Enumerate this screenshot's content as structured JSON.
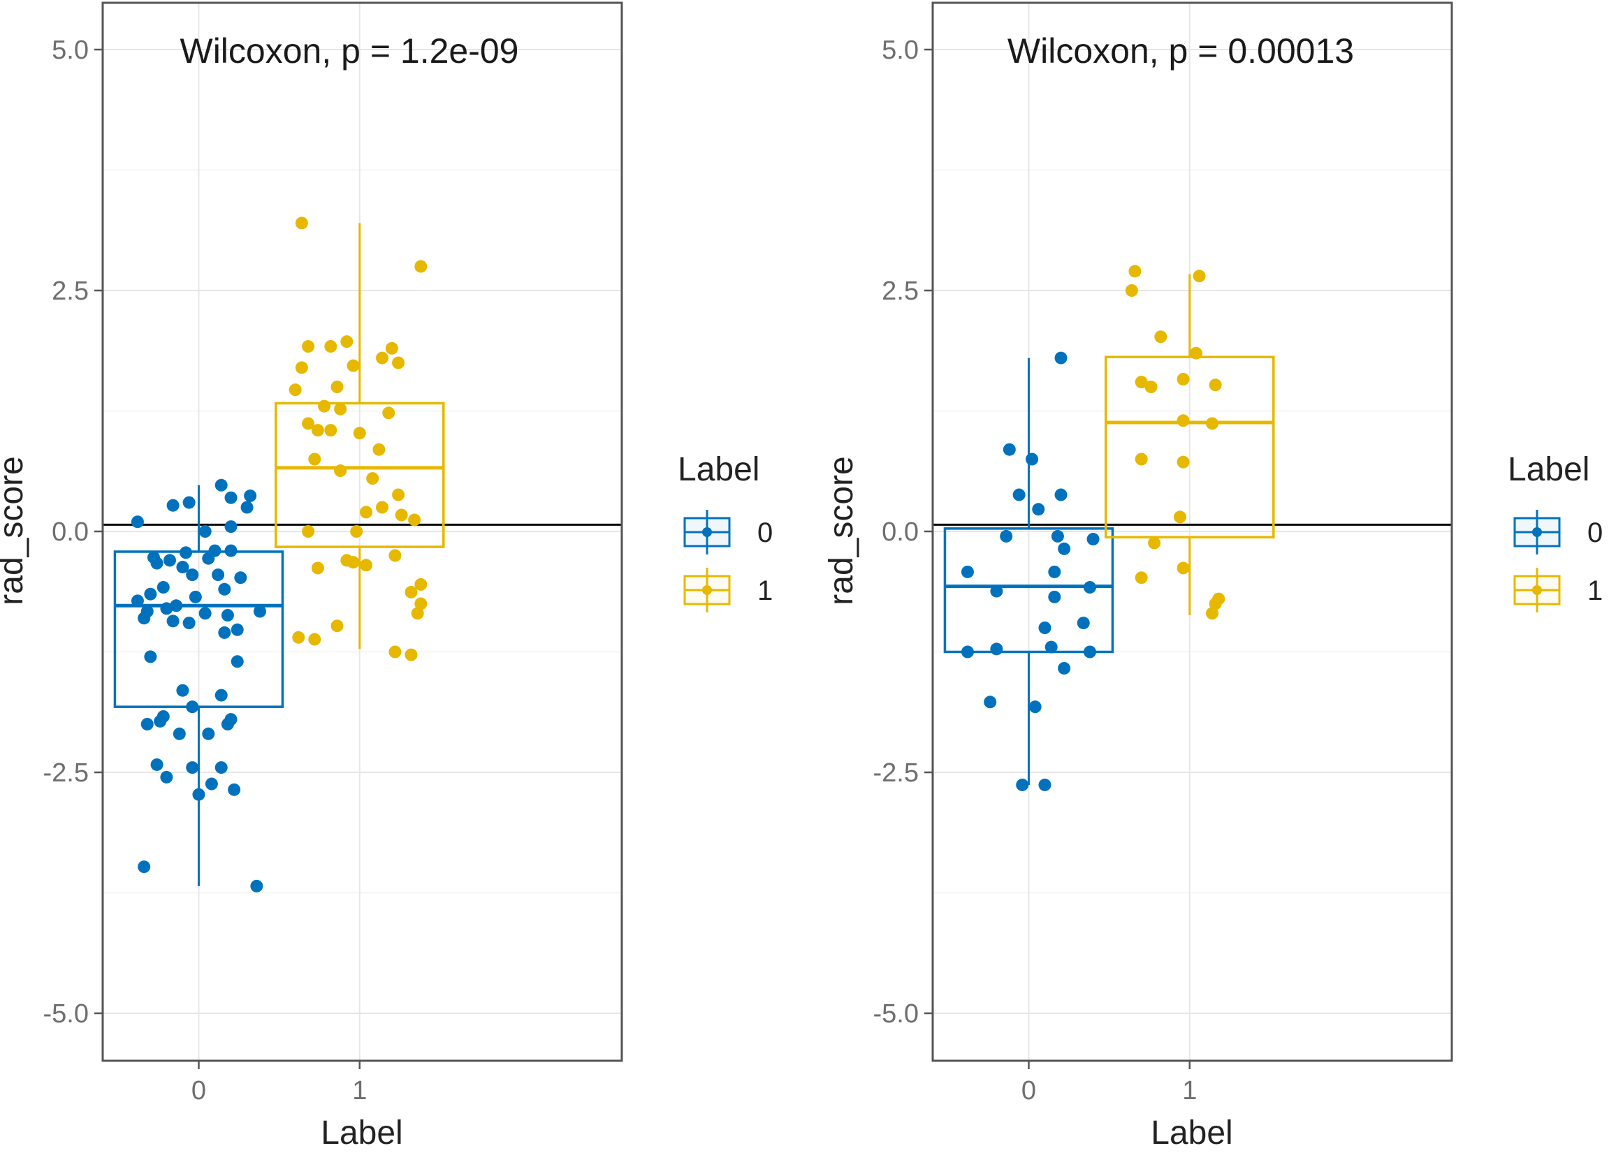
{
  "chart_data": [
    {
      "type": "boxplot",
      "annotation": "Wilcoxon, p = 1.2e-09",
      "xlabel": "Label",
      "ylabel": "rad_score",
      "categories": [
        "0",
        "1"
      ],
      "ylim": [
        -5.5,
        5.2
      ],
      "yticks": [
        5.0,
        2.5,
        0.0,
        -2.5,
        -5.0
      ],
      "ytick_labels": [
        "5.0",
        "2.5",
        "0.0",
        "-2.5",
        "-5.0"
      ],
      "hline": 0.07,
      "legend": {
        "title": "Label",
        "entries": [
          "0",
          "1"
        ],
        "position": "right"
      },
      "boxes": [
        {
          "category": "0",
          "color": "#0072BD",
          "q1": -1.82,
          "median": -0.77,
          "q3": -0.21,
          "whisker_low": -3.68,
          "whisker_high": 0.48
        },
        {
          "category": "1",
          "color": "#E7B800",
          "q1": -0.16,
          "median": 0.66,
          "q3": 1.33,
          "whisker_low": -1.22,
          "whisker_high": 3.2
        }
      ],
      "points": [
        {
          "category": "0",
          "jitter": [
            -0.19,
            0.07,
            0.1,
            -0.03,
            0.16,
            -0.08,
            0.15,
            0.02,
            0.1,
            -0.14,
            -0.04,
            0.05,
            0.1,
            -0.09,
            0.03,
            -0.13,
            -0.05,
            -0.02,
            0.06,
            0.13,
            -0.11,
            -0.15,
            -0.01,
            0.08,
            -0.19,
            -0.1,
            -0.07,
            0.02,
            0.09,
            -0.16,
            -0.03,
            0.12,
            -0.17,
            -0.08,
            0.19,
            0.08,
            0.12,
            -0.15,
            -0.05,
            0.07,
            -0.02,
            -0.11,
            0.1,
            -0.16,
            -0.12,
            -0.06,
            0.03,
            0.09,
            -0.13,
            -0.02,
            0.04,
            0.0,
            0.11,
            -0.1,
            0.07,
            -0.17,
            0.18
          ],
          "y": [
            0.1,
            0.48,
            0.35,
            0.3,
            0.37,
            0.27,
            0.25,
            0.0,
            0.05,
            -0.27,
            -0.22,
            -0.2,
            -0.2,
            -0.3,
            -0.28,
            -0.33,
            -0.37,
            -0.45,
            -0.45,
            -0.48,
            -0.58,
            -0.65,
            -0.68,
            -0.6,
            -0.72,
            -0.8,
            -0.77,
            -0.85,
            -0.87,
            -0.83,
            -0.95,
            -1.02,
            -0.9,
            -0.93,
            -0.83,
            -1.05,
            -1.35,
            -1.3,
            -1.65,
            -1.7,
            -1.82,
            -1.92,
            -1.95,
            -2.0,
            -1.97,
            -2.1,
            -2.1,
            -2.0,
            -2.42,
            -2.45,
            -2.62,
            -2.73,
            -2.68,
            -2.55,
            -2.45,
            -3.48,
            -3.68
          ]
        },
        {
          "category": "1",
          "jitter": [
            -0.18,
            0.19,
            -0.04,
            -0.09,
            -0.16,
            0.1,
            0.07,
            0.12,
            -0.02,
            -0.18,
            -0.07,
            -0.2,
            -0.11,
            -0.06,
            0.09,
            -0.16,
            -0.13,
            -0.09,
            0.0,
            0.06,
            -0.14,
            -0.06,
            0.04,
            0.12,
            0.07,
            0.02,
            0.13,
            0.17,
            -0.16,
            -0.01,
            0.11,
            -0.04,
            -0.02,
            0.19,
            -0.13,
            0.02,
            0.16,
            0.19,
            0.18,
            -0.07,
            -0.14,
            -0.19,
            0.11,
            0.16
          ],
          "y": [
            3.2,
            2.75,
            1.97,
            1.92,
            1.92,
            1.9,
            1.8,
            1.75,
            1.72,
            1.7,
            1.5,
            1.47,
            1.3,
            1.27,
            1.23,
            1.12,
            1.05,
            1.05,
            1.02,
            0.85,
            0.75,
            0.63,
            0.55,
            0.38,
            0.25,
            0.2,
            0.17,
            0.12,
            0.0,
            0.0,
            -0.25,
            -0.3,
            -0.32,
            -0.55,
            -0.38,
            -0.35,
            -0.63,
            -0.75,
            -0.85,
            -0.98,
            -1.12,
            -1.1,
            -1.25,
            -1.28
          ]
        }
      ]
    },
    {
      "type": "boxplot",
      "annotation": "Wilcoxon, p = 0.00013",
      "xlabel": "Label",
      "ylabel": "rad_score",
      "categories": [
        "0",
        "1"
      ],
      "ylim": [
        -5.5,
        5.2
      ],
      "yticks": [
        5.0,
        2.5,
        0.0,
        -2.5,
        -5.0
      ],
      "ytick_labels": [
        "5.0",
        "2.5",
        "0.0",
        "-2.5",
        "-5.0"
      ],
      "hline": 0.07,
      "legend": {
        "title": "Label",
        "entries": [
          "0",
          "1"
        ],
        "position": "right"
      },
      "boxes": [
        {
          "category": "0",
          "color": "#0072BD",
          "q1": -1.25,
          "median": -0.57,
          "q3": 0.03,
          "whisker_low": -2.63,
          "whisker_high": 1.8
        },
        {
          "category": "1",
          "color": "#E7B800",
          "q1": -0.06,
          "median": 1.13,
          "q3": 1.81,
          "whisker_low": -0.87,
          "whisker_high": 2.67
        }
      ],
      "points": [
        {
          "category": "0",
          "jitter": [
            0.1,
            -0.06,
            0.01,
            0.1,
            -0.03,
            0.03,
            -0.07,
            0.09,
            0.2,
            0.11,
            -0.19,
            0.08,
            0.19,
            -0.1,
            0.08,
            0.17,
            0.05,
            0.07,
            -0.19,
            -0.1,
            0.19,
            0.11,
            -0.12,
            0.02,
            -0.02,
            0.05
          ],
          "y": [
            1.8,
            0.85,
            0.75,
            0.38,
            0.38,
            0.23,
            -0.05,
            -0.05,
            -0.08,
            -0.18,
            -0.42,
            -0.42,
            -0.58,
            -0.62,
            -0.68,
            -0.95,
            -1.0,
            -1.2,
            -1.25,
            -1.22,
            -1.25,
            -1.42,
            -1.77,
            -1.82,
            -2.63,
            -2.63
          ]
        },
        {
          "category": "1",
          "jitter": [
            -0.17,
            0.03,
            -0.18,
            0.02,
            -0.09,
            -0.02,
            -0.15,
            -0.12,
            0.08,
            -0.02,
            0.07,
            -0.15,
            -0.02,
            -0.03,
            -0.11,
            -0.02,
            -0.15,
            0.09,
            0.07,
            0.08
          ],
          "y": [
            2.7,
            2.65,
            2.5,
            1.85,
            2.02,
            1.58,
            1.55,
            1.5,
            1.52,
            1.15,
            1.12,
            0.75,
            0.72,
            0.15,
            -0.12,
            -0.38,
            -0.48,
            -0.7,
            -0.85,
            -0.75
          ]
        }
      ]
    }
  ]
}
